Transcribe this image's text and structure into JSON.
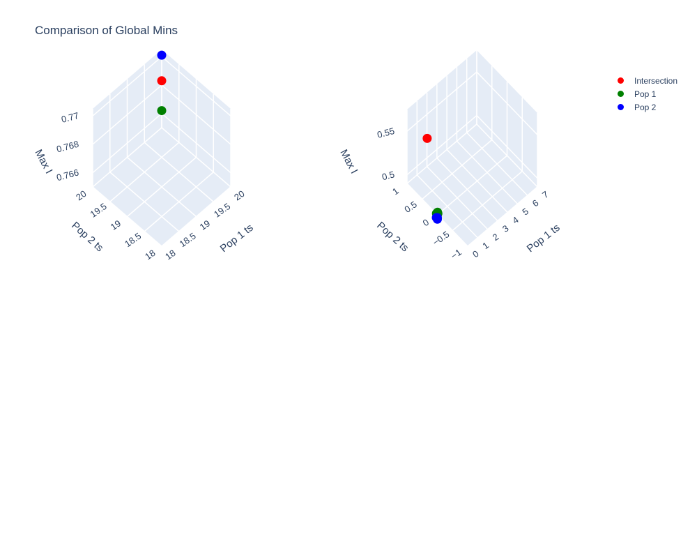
{
  "title": "Comparison of Global Mins",
  "colors": {
    "background": "#ffffff",
    "pane": "#e5ecf6",
    "grid": "#ffffff",
    "text": "#2a3f5f"
  },
  "legend": [
    {
      "label": "Intersection",
      "color": "#ff0000"
    },
    {
      "label": "Pop 1",
      "color": "#008000"
    },
    {
      "label": "Pop 2",
      "color": "#0000ff"
    }
  ],
  "chart_data": [
    {
      "type": "scatter3d",
      "xlabel": "Pop 1 ts",
      "ylabel": "Pop 2 ts",
      "zlabel": "Max I",
      "x_ticks": [
        "18",
        "18.5",
        "19",
        "19.5",
        "20"
      ],
      "y_ticks": [
        "18",
        "18.5",
        "19",
        "19.5",
        "20"
      ],
      "z_ticks": [
        "0.766",
        "0.768",
        "0.77"
      ],
      "xlim": [
        18,
        20
      ],
      "ylim": [
        18,
        20
      ],
      "zlim": [
        0.765,
        0.7705
      ],
      "series": [
        {
          "name": "Intersection",
          "color": "#ff0000",
          "points": [
            {
              "x": 20,
              "y": 20,
              "z": 0.7683
            }
          ]
        },
        {
          "name": "Pop 1",
          "color": "#008000",
          "points": [
            {
              "x": 20,
              "y": 20,
              "z": 0.7662
            }
          ]
        },
        {
          "name": "Pop 2",
          "color": "#0000ff",
          "points": [
            {
              "x": 20,
              "y": 20,
              "z": 0.7701
            }
          ]
        }
      ]
    },
    {
      "type": "scatter3d",
      "xlabel": "Pop 1 ts",
      "ylabel": "Pop 2 ts",
      "zlabel": "Max I",
      "x_ticks": [
        "0",
        "1",
        "2",
        "3",
        "4",
        "5",
        "6",
        "7"
      ],
      "y_ticks": [
        "−1",
        "−0.5",
        "0",
        "0.5",
        "1"
      ],
      "z_ticks": [
        "0.5",
        "0.55"
      ],
      "xlim": [
        0,
        7
      ],
      "ylim": [
        -1,
        1
      ],
      "zlim": [
        0.49,
        0.575
      ],
      "series": [
        {
          "name": "Intersection",
          "color": "#ff0000",
          "points": [
            {
              "x": 0.5,
              "y": 0.5,
              "z": 0.555
            }
          ]
        },
        {
          "name": "Pop 1",
          "color": "#008000",
          "points": [
            {
              "x": 0,
              "y": 0,
              "z": 0.49
            },
            {
              "x": 0.05,
              "y": 0,
              "z": 0.491
            },
            {
              "x": 0,
              "y": 0.03,
              "z": 0.4905
            },
            {
              "x": 0.08,
              "y": 0.02,
              "z": 0.4915
            }
          ]
        },
        {
          "name": "Pop 2",
          "color": "#0000ff",
          "points": [
            {
              "x": 0,
              "y": 0,
              "z": 0.485
            },
            {
              "x": 0.06,
              "y": 0.02,
              "z": 0.4855
            },
            {
              "x": 0.02,
              "y": 0.04,
              "z": 0.4852
            }
          ]
        }
      ]
    }
  ]
}
